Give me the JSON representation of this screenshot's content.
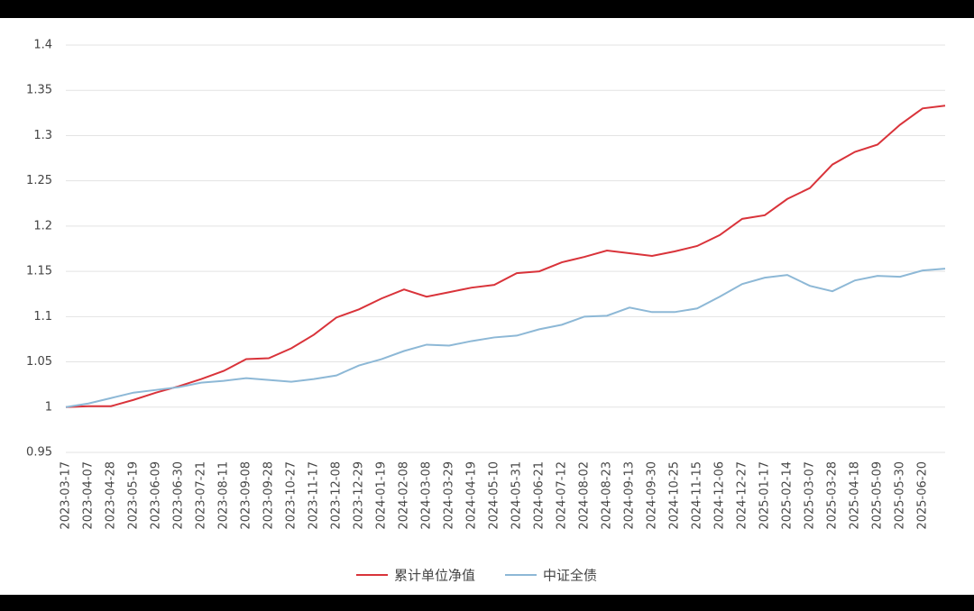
{
  "chart_data": {
    "type": "line",
    "categories": [
      "2023-03-17",
      "2023-04-07",
      "2023-04-28",
      "2023-05-19",
      "2023-06-09",
      "2023-06-30",
      "2023-07-21",
      "2023-08-11",
      "2023-09-08",
      "2023-09-28",
      "2023-10-27",
      "2023-11-17",
      "2023-12-08",
      "2023-12-29",
      "2024-01-19",
      "2024-02-08",
      "2024-03-08",
      "2024-03-29",
      "2024-04-19",
      "2024-05-10",
      "2024-05-31",
      "2024-06-21",
      "2024-07-12",
      "2024-08-02",
      "2024-08-23",
      "2024-09-13",
      "2024-09-30",
      "2024-10-25",
      "2024-11-15",
      "2024-12-06",
      "2024-12-27",
      "2025-01-17",
      "2025-02-14",
      "2025-03-07",
      "2025-03-28",
      "2025-04-18",
      "2025-05-09",
      "2025-05-30",
      "2025-06-20",
      null
    ],
    "series": [
      {
        "name": "累计单位净值",
        "color": "#d9333a",
        "values": [
          1.0,
          1.001,
          1.001,
          1.008,
          1.016,
          1.023,
          1.031,
          1.04,
          1.053,
          1.054,
          1.065,
          1.08,
          1.099,
          1.108,
          1.12,
          1.13,
          1.122,
          1.127,
          1.132,
          1.135,
          1.148,
          1.15,
          1.16,
          1.166,
          1.173,
          1.17,
          1.167,
          1.172,
          1.178,
          1.19,
          1.208,
          1.212,
          1.23,
          1.242,
          1.268,
          1.282,
          1.29,
          1.312,
          1.33,
          1.333
        ]
      },
      {
        "name": "中证全债",
        "color": "#8db8d6",
        "values": [
          1.0,
          1.004,
          1.01,
          1.016,
          1.019,
          1.022,
          1.027,
          1.029,
          1.032,
          1.03,
          1.028,
          1.031,
          1.035,
          1.046,
          1.053,
          1.062,
          1.069,
          1.068,
          1.073,
          1.077,
          1.079,
          1.086,
          1.091,
          1.1,
          1.101,
          1.11,
          1.105,
          1.105,
          1.109,
          1.122,
          1.136,
          1.143,
          1.146,
          1.134,
          1.128,
          1.14,
          1.145,
          1.144,
          1.151,
          1.153
        ]
      }
    ],
    "ylim": [
      0.95,
      1.4
    ],
    "yticks": [
      0.95,
      1,
      1.05,
      1.1,
      1.15,
      1.2,
      1.25,
      1.3,
      1.35,
      1.4
    ],
    "grid": true,
    "legend": "bottom"
  }
}
